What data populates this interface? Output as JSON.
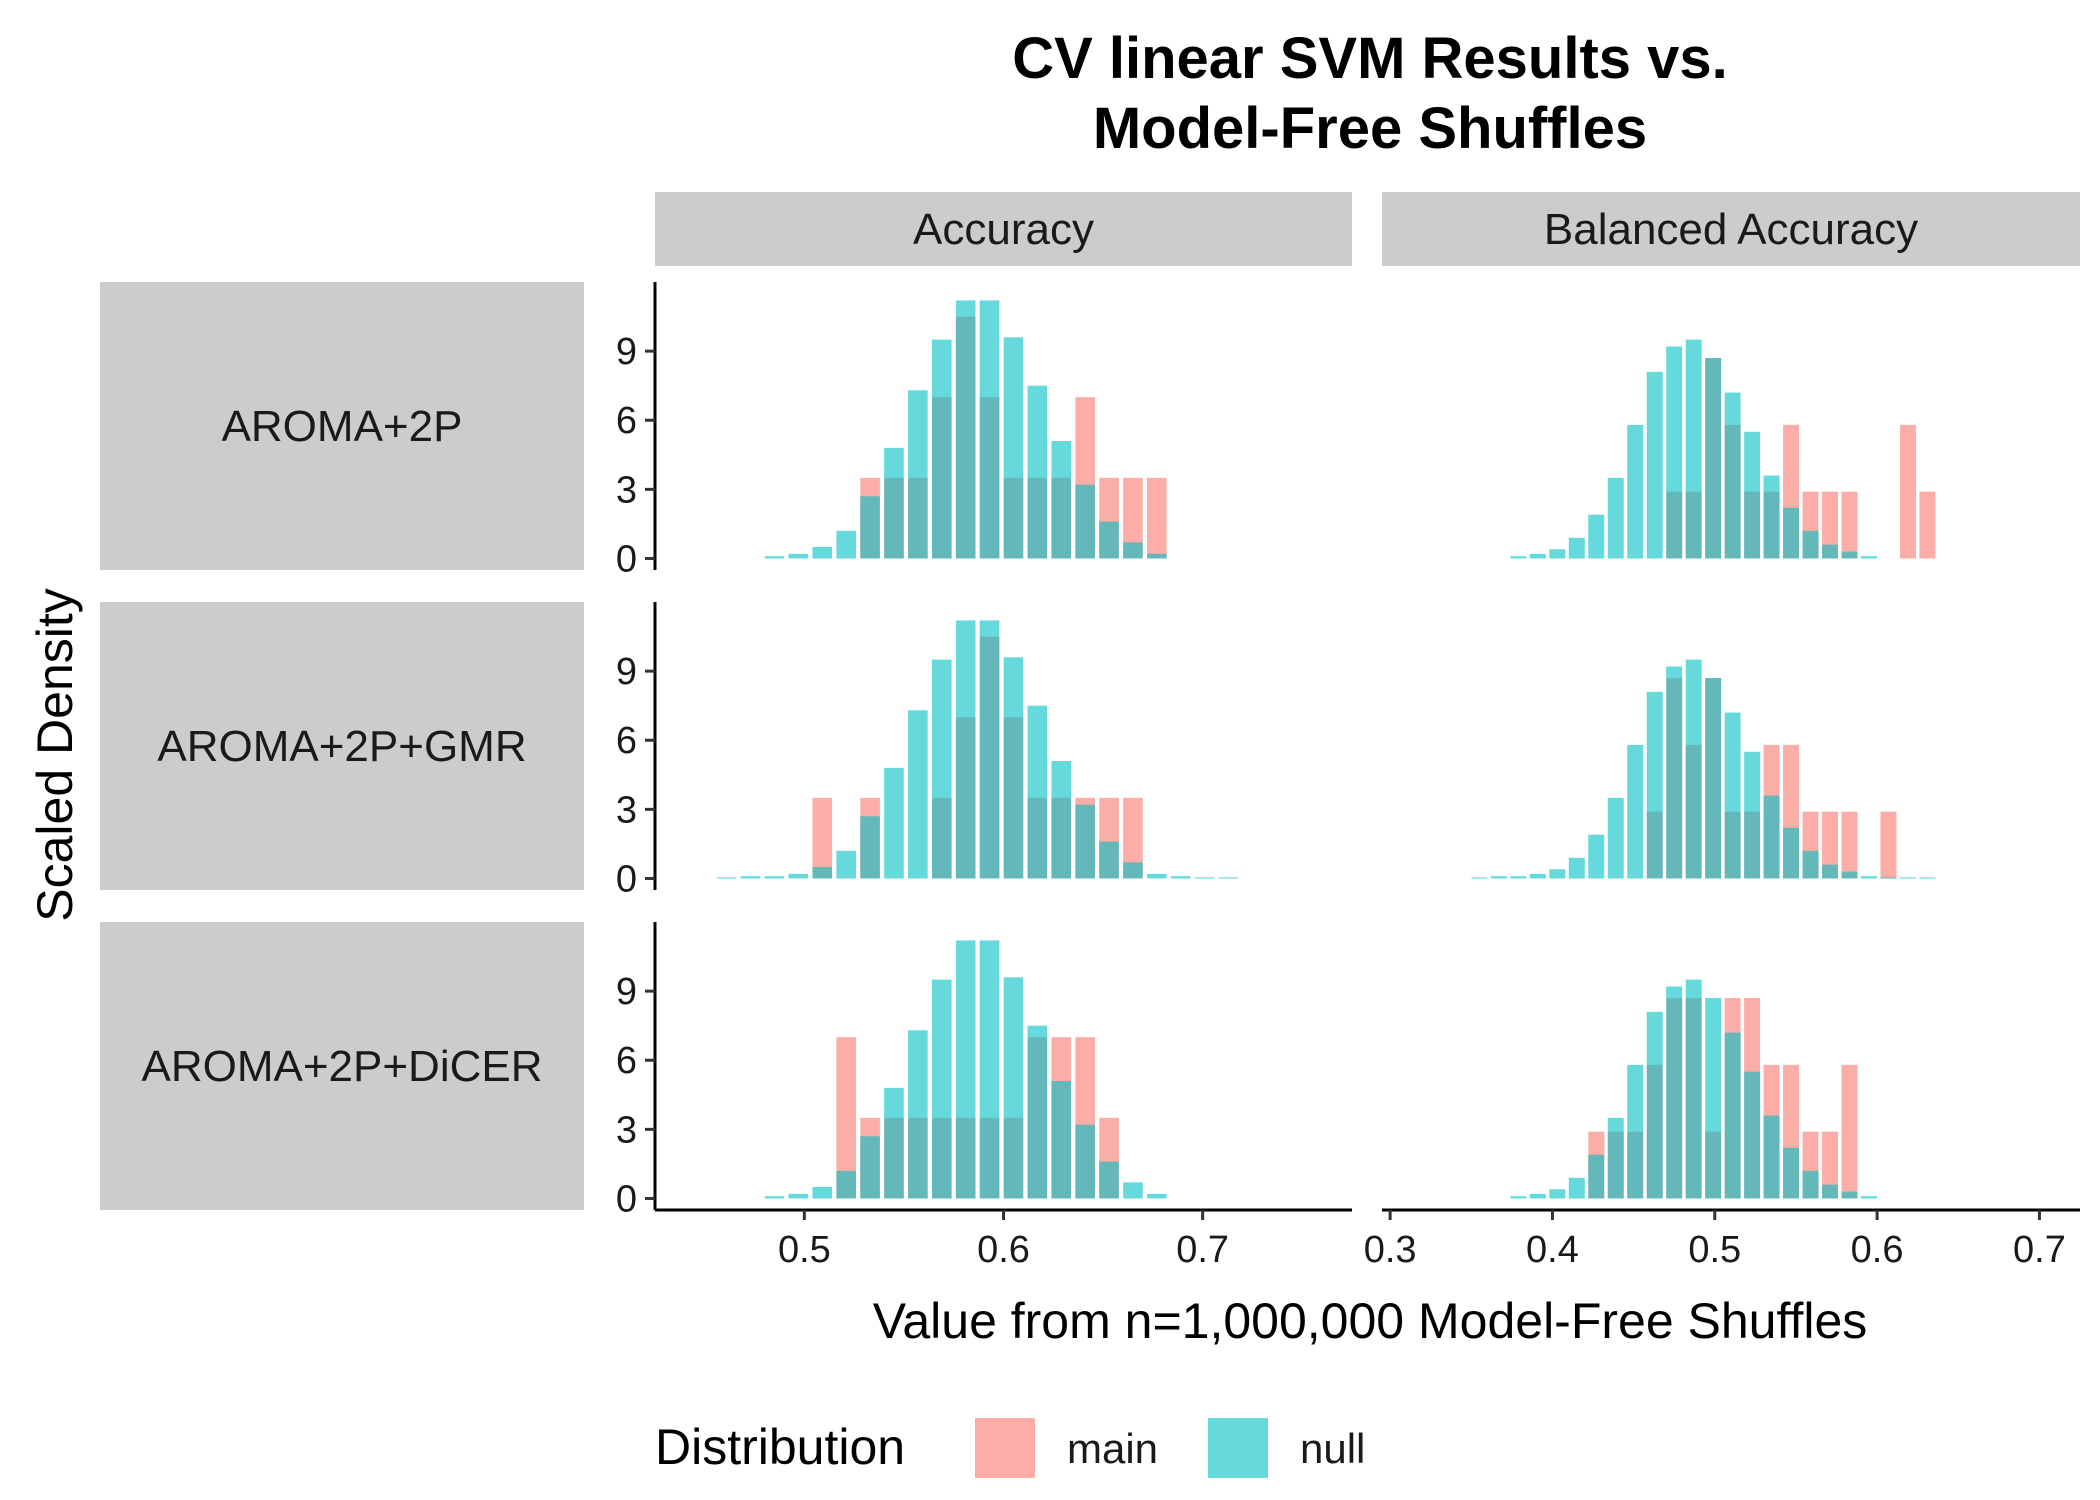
{
  "chart_data": {
    "type": "bar",
    "title_lines": [
      "CV linear SVM Results vs.",
      "Model-Free Shuffles"
    ],
    "xlabel": "Value from n=1,000,000 Model-Free Shuffles",
    "ylabel": "Scaled Density",
    "column_facets": [
      "Accuracy",
      "Balanced Accuracy"
    ],
    "row_facets": [
      "AROMA+2P",
      "AROMA+2P+GMR",
      "AROMA+2P+DiCER"
    ],
    "xlim_by_column": [
      [
        0.425,
        0.775
      ],
      [
        0.295,
        0.725
      ]
    ],
    "x_ticks_by_column": [
      [
        0.5,
        0.6,
        0.7
      ],
      [
        0.3,
        0.4,
        0.5,
        0.6,
        0.7
      ]
    ],
    "x_tick_labels_by_column": [
      [
        "0.5",
        "0.6",
        "0.7"
      ],
      [
        "0.3",
        "0.4",
        "0.5",
        "0.6",
        "0.7"
      ]
    ],
    "ylim": [
      -0.5,
      12
    ],
    "y_ticks": [
      0,
      3,
      6,
      9
    ],
    "y_tick_labels": [
      "0",
      "3",
      "6",
      "9"
    ],
    "grid": false,
    "legend_position": "bottom",
    "legend_title": "Distribution",
    "series_colors": {
      "main": "#F8766D",
      "null": "#00BFC4"
    },
    "bin_width": 0.012,
    "panels": [
      {
        "row": "AROMA+2P",
        "column": "Accuracy",
        "main": {
          "x": [
            0.533,
            0.545,
            0.557,
            0.569,
            0.581,
            0.593,
            0.605,
            0.617,
            0.629,
            0.641,
            0.653,
            0.665,
            0.677
          ],
          "density": [
            3.5,
            3.5,
            3.5,
            7.0,
            10.5,
            7.0,
            3.5,
            3.5,
            3.5,
            7.0,
            3.5,
            3.5,
            3.5
          ]
        },
        "null": {
          "x": [
            0.485,
            0.497,
            0.509,
            0.521,
            0.533,
            0.545,
            0.557,
            0.569,
            0.581,
            0.593,
            0.605,
            0.617,
            0.629,
            0.641,
            0.653,
            0.665,
            0.677
          ],
          "density": [
            0.1,
            0.2,
            0.5,
            1.2,
            2.7,
            4.8,
            7.3,
            9.5,
            11.2,
            11.2,
            9.6,
            7.5,
            5.1,
            3.2,
            1.6,
            0.7,
            0.2
          ]
        }
      },
      {
        "row": "AROMA+2P",
        "column": "Balanced Accuracy",
        "main": {
          "x": [
            0.475,
            0.487,
            0.499,
            0.511,
            0.523,
            0.535,
            0.547,
            0.559,
            0.571,
            0.583,
            0.595,
            0.607,
            0.619,
            0.631
          ],
          "density": [
            2.9,
            2.9,
            8.7,
            5.8,
            2.9,
            2.9,
            5.8,
            2.9,
            2.9,
            2.9,
            0.0,
            0.0,
            5.8,
            2.9
          ]
        },
        "null": {
          "x": [
            0.379,
            0.391,
            0.403,
            0.415,
            0.427,
            0.439,
            0.451,
            0.463,
            0.475,
            0.487,
            0.499,
            0.511,
            0.523,
            0.535,
            0.547,
            0.559,
            0.571,
            0.583,
            0.595
          ],
          "density": [
            0.1,
            0.2,
            0.4,
            0.9,
            1.9,
            3.5,
            5.8,
            8.1,
            9.2,
            9.5,
            8.7,
            7.2,
            5.5,
            3.6,
            2.2,
            1.2,
            0.6,
            0.3,
            0.1
          ]
        }
      },
      {
        "row": "AROMA+2P+GMR",
        "column": "Accuracy",
        "main": {
          "x": [
            0.509,
            0.521,
            0.533,
            0.545,
            0.557,
            0.569,
            0.581,
            0.593,
            0.605,
            0.617,
            0.629,
            0.641,
            0.653,
            0.665
          ],
          "density": [
            3.5,
            0.0,
            3.5,
            0.0,
            0.0,
            3.5,
            7.0,
            10.5,
            7.0,
            3.5,
            3.5,
            3.5,
            3.5,
            3.5
          ]
        },
        "null": {
          "x": [
            0.461,
            0.473,
            0.485,
            0.497,
            0.509,
            0.521,
            0.533,
            0.545,
            0.557,
            0.569,
            0.581,
            0.593,
            0.605,
            0.617,
            0.629,
            0.641,
            0.653,
            0.665,
            0.677,
            0.689,
            0.701,
            0.713
          ],
          "density": [
            0.05,
            0.1,
            0.1,
            0.2,
            0.5,
            1.2,
            2.7,
            4.8,
            7.3,
            9.5,
            11.2,
            11.2,
            9.6,
            7.5,
            5.1,
            3.2,
            1.6,
            0.7,
            0.2,
            0.1,
            0.05,
            0.05
          ]
        }
      },
      {
        "row": "AROMA+2P+GMR",
        "column": "Balanced Accuracy",
        "main": {
          "x": [
            0.463,
            0.475,
            0.487,
            0.499,
            0.511,
            0.523,
            0.535,
            0.547,
            0.559,
            0.571,
            0.583,
            0.595,
            0.607
          ],
          "density": [
            2.9,
            8.7,
            5.8,
            8.7,
            2.9,
            2.9,
            5.8,
            5.8,
            2.9,
            2.9,
            2.9,
            0.0,
            2.9
          ]
        },
        "null": {
          "x": [
            0.355,
            0.367,
            0.379,
            0.391,
            0.403,
            0.415,
            0.427,
            0.439,
            0.451,
            0.463,
            0.475,
            0.487,
            0.499,
            0.511,
            0.523,
            0.535,
            0.547,
            0.559,
            0.571,
            0.583,
            0.595,
            0.607,
            0.619,
            0.631
          ],
          "density": [
            0.05,
            0.1,
            0.1,
            0.2,
            0.4,
            0.9,
            1.9,
            3.5,
            5.8,
            8.1,
            9.2,
            9.5,
            8.7,
            7.2,
            5.5,
            3.6,
            2.2,
            1.2,
            0.6,
            0.3,
            0.1,
            0.05,
            0.05,
            0.05
          ]
        }
      },
      {
        "row": "AROMA+2P+DiCER",
        "column": "Accuracy",
        "main": {
          "x": [
            0.521,
            0.533,
            0.545,
            0.557,
            0.569,
            0.581,
            0.593,
            0.605,
            0.617,
            0.629,
            0.641,
            0.653
          ],
          "density": [
            7.0,
            3.5,
            3.5,
            3.5,
            3.5,
            3.5,
            3.5,
            3.5,
            7.0,
            7.0,
            7.0,
            3.5
          ]
        },
        "null": {
          "x": [
            0.485,
            0.497,
            0.509,
            0.521,
            0.533,
            0.545,
            0.557,
            0.569,
            0.581,
            0.593,
            0.605,
            0.617,
            0.629,
            0.641,
            0.653,
            0.665,
            0.677
          ],
          "density": [
            0.1,
            0.2,
            0.5,
            1.2,
            2.7,
            4.8,
            7.3,
            9.5,
            11.2,
            11.2,
            9.6,
            7.5,
            5.1,
            3.2,
            1.6,
            0.7,
            0.2
          ]
        }
      },
      {
        "row": "AROMA+2P+DiCER",
        "column": "Balanced Accuracy",
        "main": {
          "x": [
            0.427,
            0.439,
            0.451,
            0.463,
            0.475,
            0.487,
            0.499,
            0.511,
            0.523,
            0.535,
            0.547,
            0.559,
            0.571,
            0.583
          ],
          "density": [
            2.9,
            2.9,
            2.9,
            5.8,
            8.7,
            8.7,
            2.9,
            8.7,
            8.7,
            5.8,
            5.8,
            2.9,
            2.9,
            5.8
          ]
        },
        "null": {
          "x": [
            0.379,
            0.391,
            0.403,
            0.415,
            0.427,
            0.439,
            0.451,
            0.463,
            0.475,
            0.487,
            0.499,
            0.511,
            0.523,
            0.535,
            0.547,
            0.559,
            0.571,
            0.583,
            0.595
          ],
          "density": [
            0.1,
            0.2,
            0.4,
            0.9,
            1.9,
            3.5,
            5.8,
            8.1,
            9.2,
            9.5,
            8.7,
            7.2,
            5.5,
            3.6,
            2.2,
            1.2,
            0.6,
            0.3,
            0.1
          ]
        }
      }
    ],
    "legend": [
      {
        "key": "main",
        "label": "main"
      },
      {
        "key": "null",
        "label": "null"
      }
    ]
  }
}
